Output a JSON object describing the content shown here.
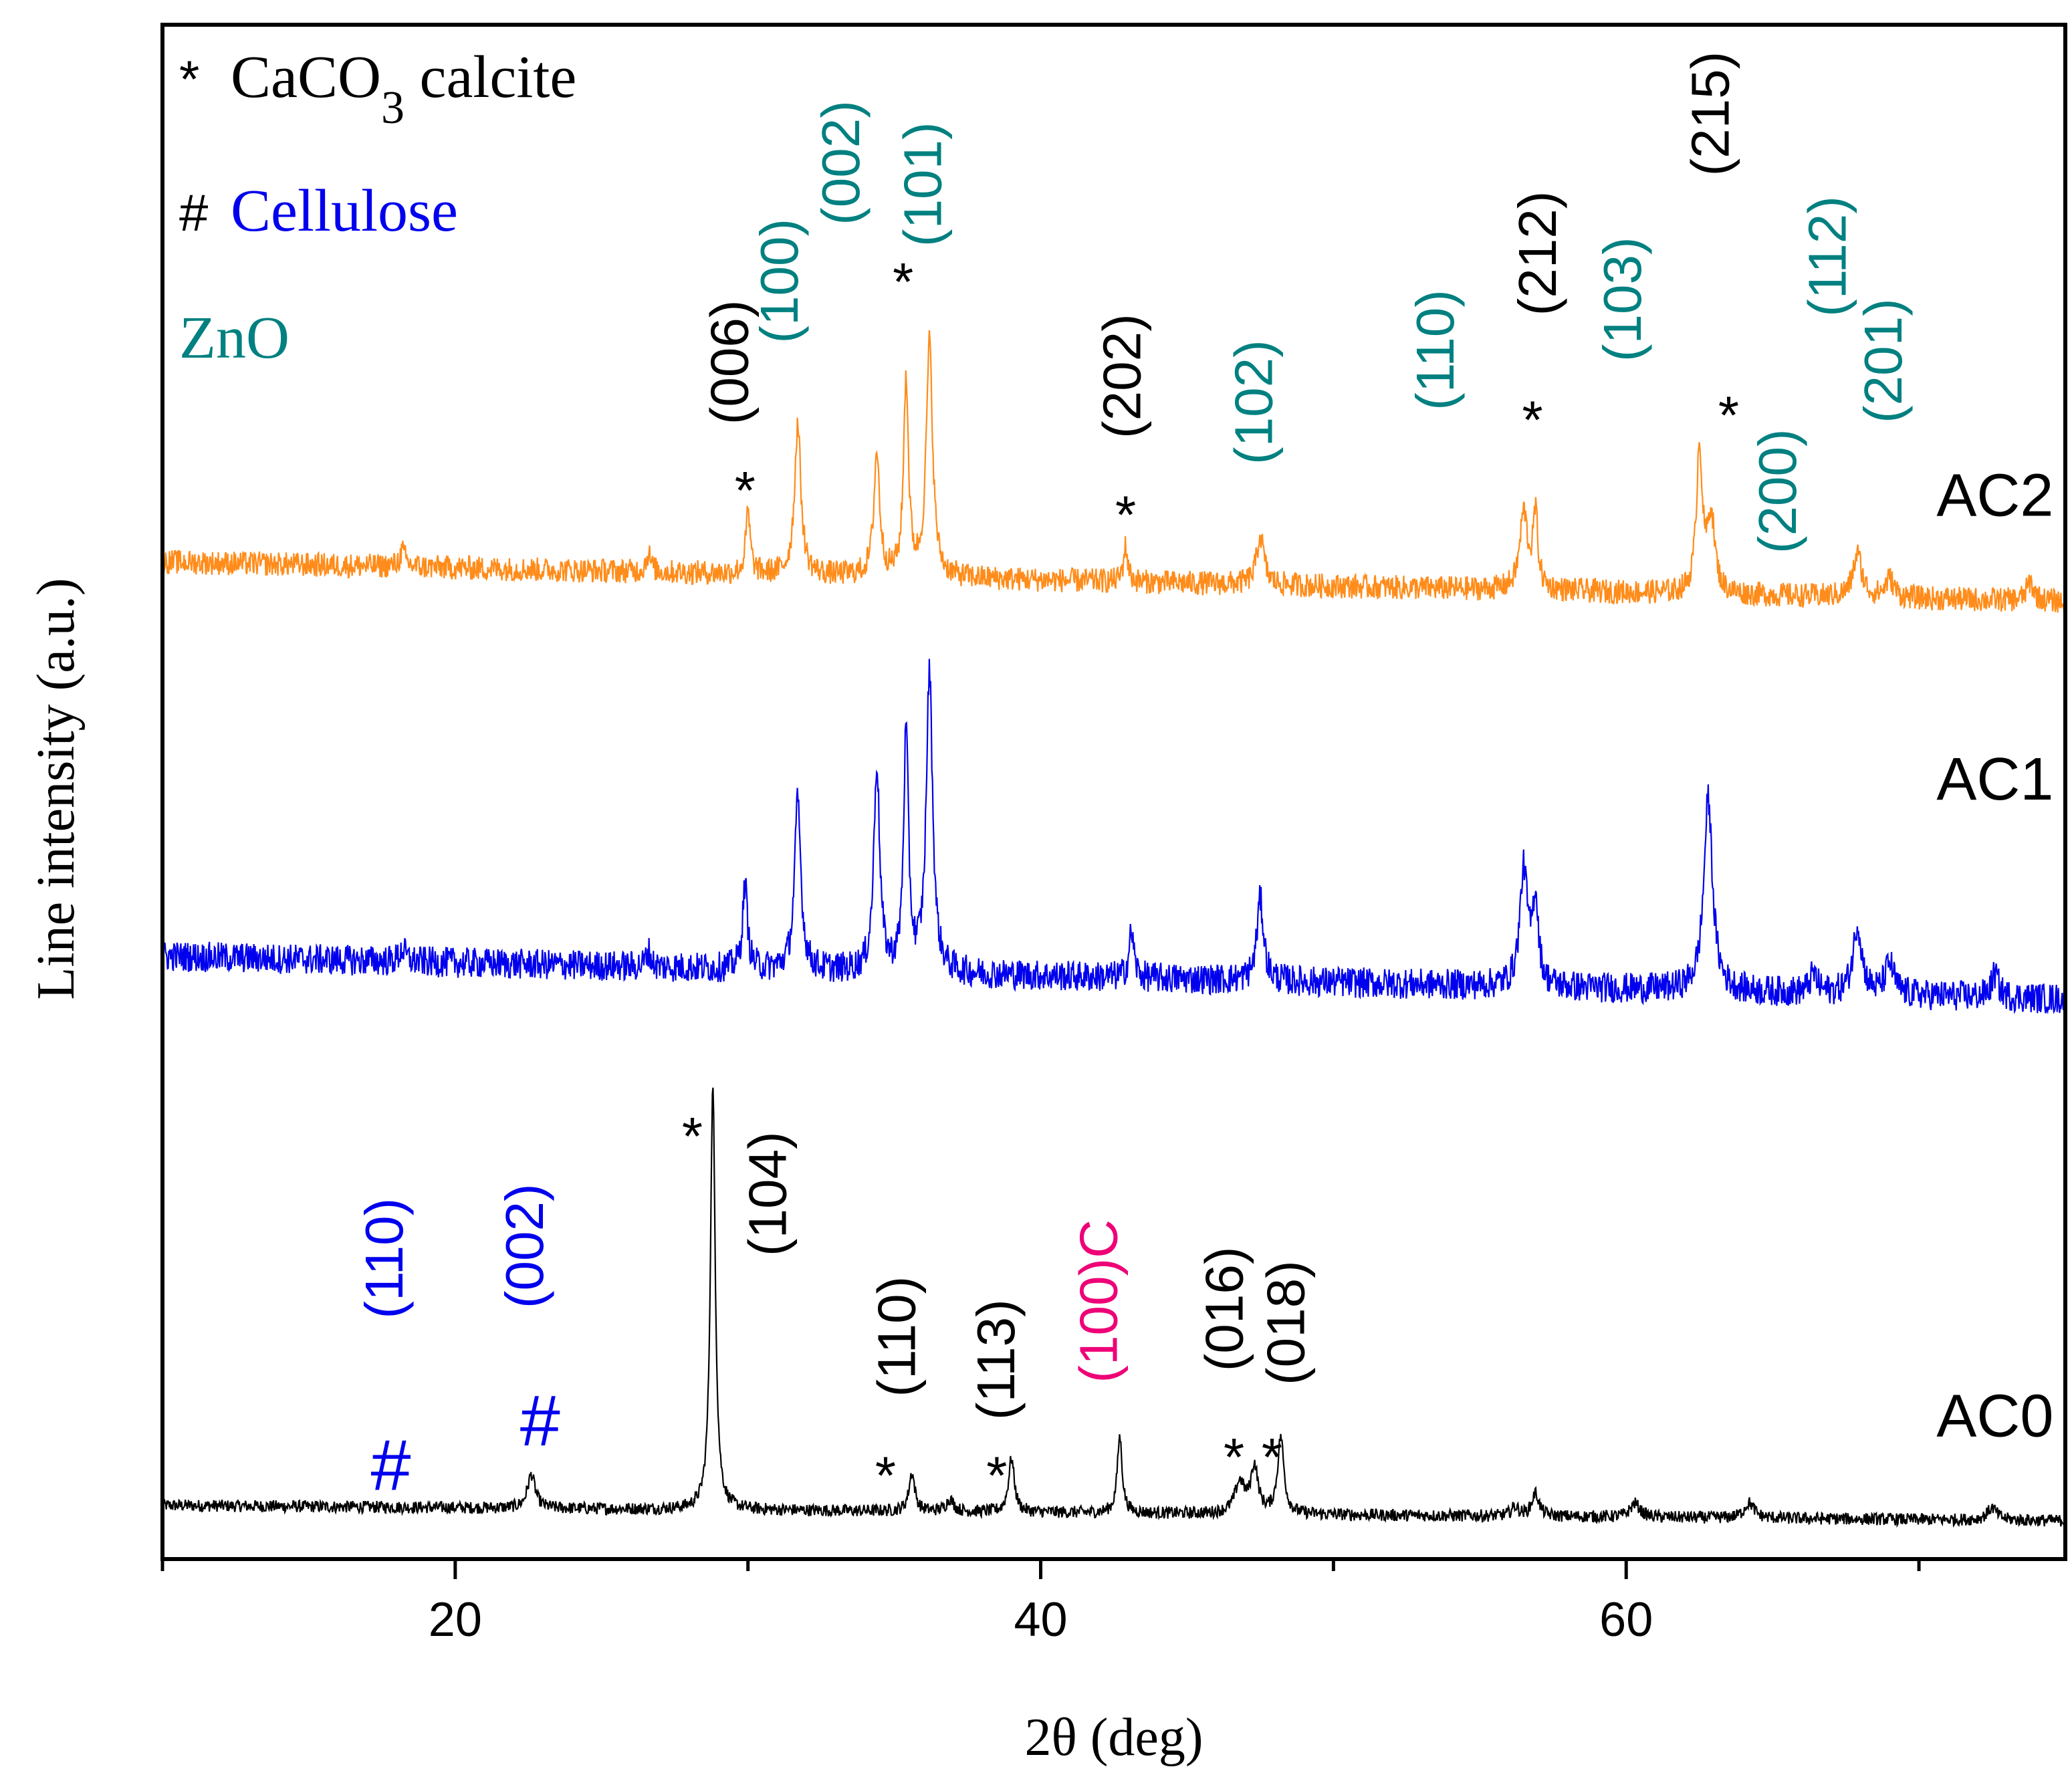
{
  "chart_data": {
    "type": "line",
    "title": "",
    "xlabel": "2θ (deg)",
    "ylabel": "Line intensity (a.u.)",
    "xlim": [
      10,
      75
    ],
    "x_ticks": [
      20,
      40,
      60
    ],
    "x_ticks_minor": [
      10,
      30,
      50,
      70
    ],
    "ylim": [
      0,
      100
    ],
    "legend": {
      "placement": "top-left",
      "entries": [
        {
          "symbol": "*",
          "text": "CaCO",
          "sub": "3",
          "after": " calcite",
          "color": "#000000"
        },
        {
          "symbol": "#",
          "text": "Cellulose",
          "sub": "",
          "after": "",
          "color": "#0000ee"
        },
        {
          "symbol": "",
          "text": "ZnO",
          "sub": "",
          "after": "",
          "color": "#008080"
        }
      ]
    },
    "series": [
      {
        "name": "AC0",
        "color": "#000000",
        "baseline": [
          3.5,
          2.5
        ],
        "noise": 0.4,
        "label_x": 72.6,
        "label_y": 8,
        "peaks": [
          {
            "x": 22.6,
            "h": 2.2,
            "w": 0.16
          },
          {
            "x": 28.8,
            "h": 27.5,
            "w": 0.1
          },
          {
            "x": 35.6,
            "h": 2.5,
            "w": 0.12
          },
          {
            "x": 36.9,
            "h": 0.8,
            "w": 0.15
          },
          {
            "x": 39.0,
            "h": 3.5,
            "w": 0.12
          },
          {
            "x": 42.7,
            "h": 5.0,
            "w": 0.1
          },
          {
            "x": 46.8,
            "h": 2.0,
            "w": 0.2
          },
          {
            "x": 47.3,
            "h": 3.0,
            "w": 0.15
          },
          {
            "x": 48.2,
            "h": 5.0,
            "w": 0.13
          },
          {
            "x": 56.2,
            "h": 0.6,
            "w": 0.15
          },
          {
            "x": 56.9,
            "h": 1.5,
            "w": 0.15
          },
          {
            "x": 60.3,
            "h": 0.9,
            "w": 0.2
          },
          {
            "x": 64.2,
            "h": 1.0,
            "w": 0.2
          },
          {
            "x": 72.5,
            "h": 0.8,
            "w": 0.2
          }
        ]
      },
      {
        "name": "AC1",
        "color": "#0000ee",
        "baseline": [
          39.3,
          36.5
        ],
        "noise": 1.0,
        "label_x": 72.6,
        "label_y": 49.5,
        "peaks": [
          {
            "x": 18.2,
            "h": 0.8,
            "w": 0.12
          },
          {
            "x": 26.6,
            "h": 1.0,
            "w": 0.1
          },
          {
            "x": 29.9,
            "h": 5.5,
            "w": 0.1
          },
          {
            "x": 31.7,
            "h": 11.0,
            "w": 0.13
          },
          {
            "x": 34.4,
            "h": 13.5,
            "w": 0.12
          },
          {
            "x": 35.4,
            "h": 15.5,
            "w": 0.1
          },
          {
            "x": 36.2,
            "h": 19.5,
            "w": 0.13
          },
          {
            "x": 43.1,
            "h": 3.0,
            "w": 0.1
          },
          {
            "x": 47.5,
            "h": 5.3,
            "w": 0.14
          },
          {
            "x": 56.5,
            "h": 7.5,
            "w": 0.16
          },
          {
            "x": 56.9,
            "h": 5.5,
            "w": 0.12
          },
          {
            "x": 62.8,
            "h": 12.5,
            "w": 0.18
          },
          {
            "x": 66.4,
            "h": 1.2,
            "w": 0.15
          },
          {
            "x": 67.9,
            "h": 4.5,
            "w": 0.18
          },
          {
            "x": 69.0,
            "h": 2.0,
            "w": 0.18
          },
          {
            "x": 72.6,
            "h": 1.5,
            "w": 0.15
          }
        ]
      },
      {
        "name": "AC2",
        "color": "#ff8c1a",
        "baseline": [
          65.0,
          62.4
        ],
        "noise": 0.8,
        "label_x": 72.6,
        "label_y": 68,
        "peaks": [
          {
            "x": 18.2,
            "h": 1.0,
            "w": 0.12
          },
          {
            "x": 26.6,
            "h": 1.2,
            "w": 0.1
          },
          {
            "x": 30.0,
            "h": 4.0,
            "w": 0.09
          },
          {
            "x": 31.7,
            "h": 9.8,
            "w": 0.13
          },
          {
            "x": 34.4,
            "h": 8.0,
            "w": 0.12
          },
          {
            "x": 35.4,
            "h": 12.8,
            "w": 0.1
          },
          {
            "x": 36.2,
            "h": 15.2,
            "w": 0.13
          },
          {
            "x": 42.9,
            "h": 2.3,
            "w": 0.09
          },
          {
            "x": 47.5,
            "h": 3.2,
            "w": 0.15
          },
          {
            "x": 56.5,
            "h": 5.0,
            "w": 0.16
          },
          {
            "x": 56.9,
            "h": 4.8,
            "w": 0.1
          },
          {
            "x": 62.5,
            "h": 9.5,
            "w": 0.12
          },
          {
            "x": 62.9,
            "h": 5.0,
            "w": 0.15
          },
          {
            "x": 67.9,
            "h": 2.8,
            "w": 0.18
          },
          {
            "x": 69.0,
            "h": 1.2,
            "w": 0.18
          },
          {
            "x": 73.8,
            "h": 1.2,
            "w": 0.15
          }
        ]
      }
    ],
    "annotations": [
      {
        "text": "*",
        "x": 29.9,
        "y": 70.2,
        "color": "#000000",
        "rotate": false,
        "size": 50
      },
      {
        "text": "(006)",
        "x": 30.0,
        "y": 78.0,
        "color": "#000000",
        "rotate": true,
        "size": 50
      },
      {
        "text": "(100)",
        "x": 31.7,
        "y": 83.3,
        "color": "#008080",
        "rotate": true,
        "size": 50
      },
      {
        "text": "(002)",
        "x": 33.8,
        "y": 91.0,
        "color": "#008080",
        "rotate": true,
        "size": 50
      },
      {
        "text": "*",
        "x": 35.3,
        "y": 83.8,
        "color": "#000000",
        "rotate": false,
        "size": 50
      },
      {
        "text": "(101)",
        "x": 36.6,
        "y": 89.6,
        "color": "#008080",
        "rotate": true,
        "size": 50
      },
      {
        "text": "*",
        "x": 42.9,
        "y": 68.6,
        "color": "#000000",
        "rotate": false,
        "size": 50
      },
      {
        "text": "(202)",
        "x": 43.4,
        "y": 77.1,
        "color": "#000000",
        "rotate": true,
        "size": 50
      },
      {
        "text": "(102)",
        "x": 47.9,
        "y": 75.4,
        "color": "#008080",
        "rotate": true,
        "size": 50
      },
      {
        "text": "(110)",
        "x": 54.1,
        "y": 78.8,
        "color": "#008080",
        "rotate": true,
        "size": 50
      },
      {
        "text": "*",
        "x": 56.8,
        "y": 74.8,
        "color": "#000000",
        "rotate": false,
        "size": 50
      },
      {
        "text": "(212)",
        "x": 57.6,
        "y": 85.1,
        "color": "#000000",
        "rotate": true,
        "size": 50
      },
      {
        "text": "(103)",
        "x": 60.5,
        "y": 82.1,
        "color": "#008080",
        "rotate": true,
        "size": 50
      },
      {
        "text": "*",
        "x": 63.5,
        "y": 75.1,
        "color": "#000000",
        "rotate": false,
        "size": 50
      },
      {
        "text": "(215)",
        "x": 63.5,
        "y": 94.2,
        "color": "#000000",
        "rotate": true,
        "size": 50
      },
      {
        "text": "(200)",
        "x": 65.8,
        "y": 69.6,
        "color": "#008080",
        "rotate": true,
        "size": 50
      },
      {
        "text": "(112)",
        "x": 67.5,
        "y": 84.9,
        "color": "#008080",
        "rotate": true,
        "size": 50
      },
      {
        "text": "(201)",
        "x": 69.4,
        "y": 78.1,
        "color": "#008080",
        "rotate": true,
        "size": 50
      },
      {
        "text": "#",
        "x": 17.8,
        "y": 4.5,
        "color": "#0000ee",
        "rotate": false,
        "size": 72
      },
      {
        "text": "(110)",
        "x": 18.2,
        "y": 19.6,
        "color": "#0000ee",
        "rotate": true,
        "size": 50
      },
      {
        "text": "#",
        "x": 22.9,
        "y": 7.4,
        "color": "#0000ee",
        "rotate": false,
        "size": 72
      },
      {
        "text": "(002)",
        "x": 23.0,
        "y": 20.4,
        "color": "#0000ee",
        "rotate": true,
        "size": 50
      },
      {
        "text": "*",
        "x": 28.1,
        "y": 28.1,
        "color": "#000000",
        "rotate": false,
        "size": 50
      },
      {
        "text": "(104)",
        "x": 31.3,
        "y": 23.8,
        "color": "#000000",
        "rotate": true,
        "size": 50
      },
      {
        "text": "*",
        "x": 34.7,
        "y": 6.0,
        "color": "#000000",
        "rotate": false,
        "size": 50
      },
      {
        "text": "(110)",
        "x": 35.7,
        "y": 14.5,
        "color": "#000000",
        "rotate": true,
        "size": 50
      },
      {
        "text": "*",
        "x": 38.5,
        "y": 6.0,
        "color": "#000000",
        "rotate": false,
        "size": 50
      },
      {
        "text": "(113)",
        "x": 39.1,
        "y": 13.0,
        "color": "#000000",
        "rotate": true,
        "size": 50
      },
      {
        "text": "(100)C",
        "x": 42.6,
        "y": 16.8,
        "color": "#ee0077",
        "rotate": true,
        "size": 50
      },
      {
        "text": "*",
        "x": 46.6,
        "y": 7.2,
        "color": "#000000",
        "rotate": false,
        "size": 50
      },
      {
        "text": "(016)",
        "x": 46.9,
        "y": 16.3,
        "color": "#000000",
        "rotate": true,
        "size": 50
      },
      {
        "text": "*",
        "x": 47.9,
        "y": 7.2,
        "color": "#000000",
        "rotate": false,
        "size": 50
      },
      {
        "text": "(018)",
        "x": 49.0,
        "y": 15.4,
        "color": "#000000",
        "rotate": true,
        "size": 50
      }
    ]
  }
}
